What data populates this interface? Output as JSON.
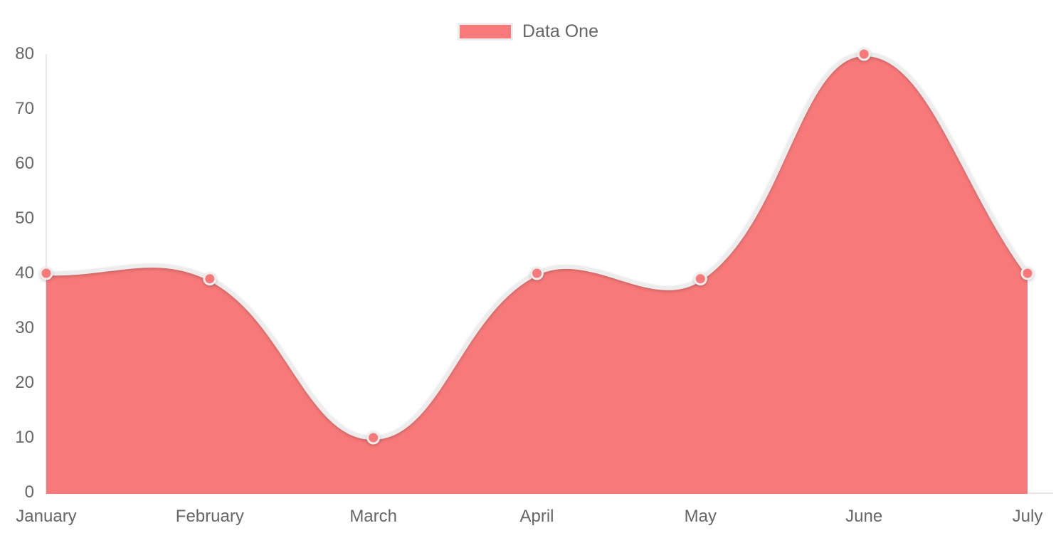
{
  "chart_data": {
    "type": "area",
    "title": "",
    "categories": [
      "January",
      "February",
      "March",
      "April",
      "May",
      "June",
      "July"
    ],
    "series": [
      {
        "name": "Data One",
        "values": [
          40,
          39,
          10,
          40,
          39,
          80,
          40
        ]
      }
    ],
    "xlabel": "",
    "ylabel": "",
    "ylim": [
      0,
      80
    ],
    "yticks": [
      0,
      10,
      20,
      30,
      40,
      50,
      60,
      70,
      80
    ],
    "grid": false,
    "legend_position": "top-center",
    "curve": "bezier-tension-0.4",
    "colors": {
      "series_fill": "#f87979",
      "series_line": "#ededed",
      "point_fill": "#f87979",
      "point_border": "#ededed",
      "axis_line": "#e7e7e7",
      "tick_text": "#666666",
      "legend_text": "#666666",
      "background": "#ffffff"
    }
  },
  "legend": {
    "items": [
      {
        "label": "Data One",
        "swatch_color": "#f87979"
      }
    ]
  }
}
